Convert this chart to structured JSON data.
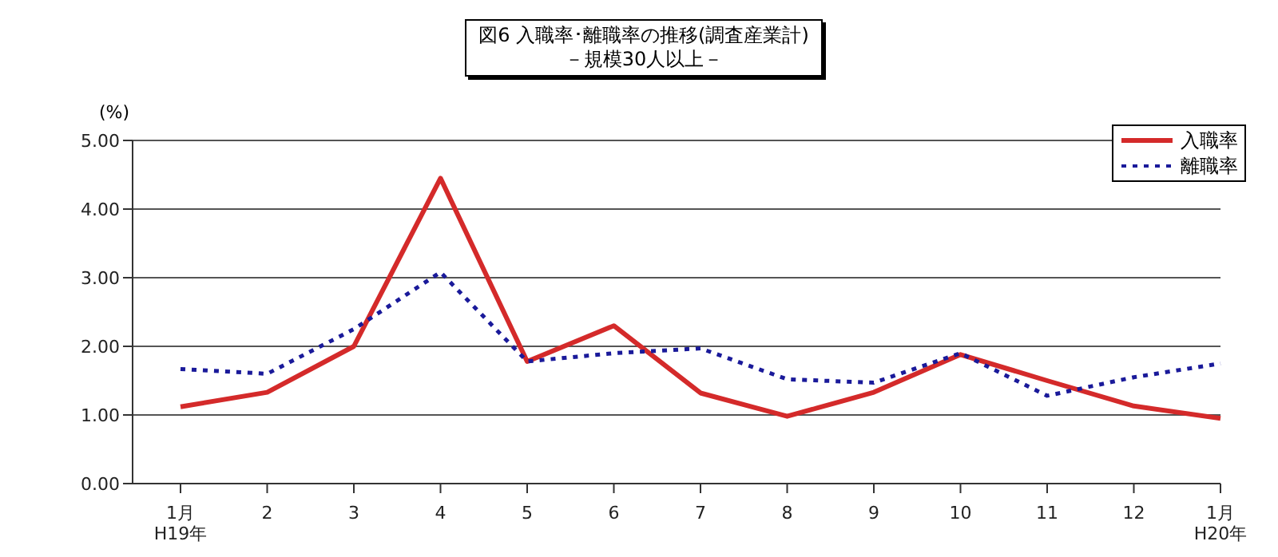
{
  "chart_data": {
    "type": "line",
    "title": "図6  入職率･離職率の推移(調査産業計)",
    "subtitle": "－規模30人以上－",
    "ylabel": "(%)",
    "categories": [
      "1月\nH19年",
      "2",
      "3",
      "4",
      "5",
      "6",
      "7",
      "8",
      "9",
      "10",
      "11",
      "12",
      "1月\nH20年"
    ],
    "series": [
      {
        "name": "入職率",
        "color": "#d42a2a",
        "line_style": "solid",
        "values": [
          1.12,
          1.33,
          2.0,
          4.45,
          1.78,
          2.3,
          1.32,
          0.98,
          1.33,
          1.88,
          1.5,
          1.13,
          0.95
        ]
      },
      {
        "name": "離職率",
        "color": "#1a1a9a",
        "line_style": "dotted",
        "values": [
          1.67,
          1.6,
          2.25,
          3.08,
          1.78,
          1.9,
          1.97,
          1.52,
          1.47,
          1.9,
          1.28,
          1.55,
          1.75
        ]
      }
    ],
    "ylim": [
      0,
      5
    ],
    "yticks": [
      {
        "value": 0,
        "label": "0.00"
      },
      {
        "value": 1,
        "label": "1.00"
      },
      {
        "value": 2,
        "label": "2.00"
      },
      {
        "value": 3,
        "label": "3.00"
      },
      {
        "value": 4,
        "label": "4.00"
      },
      {
        "value": 5,
        "label": "5.00"
      }
    ],
    "grid": "y",
    "legend": "top right",
    "marker": "none"
  }
}
